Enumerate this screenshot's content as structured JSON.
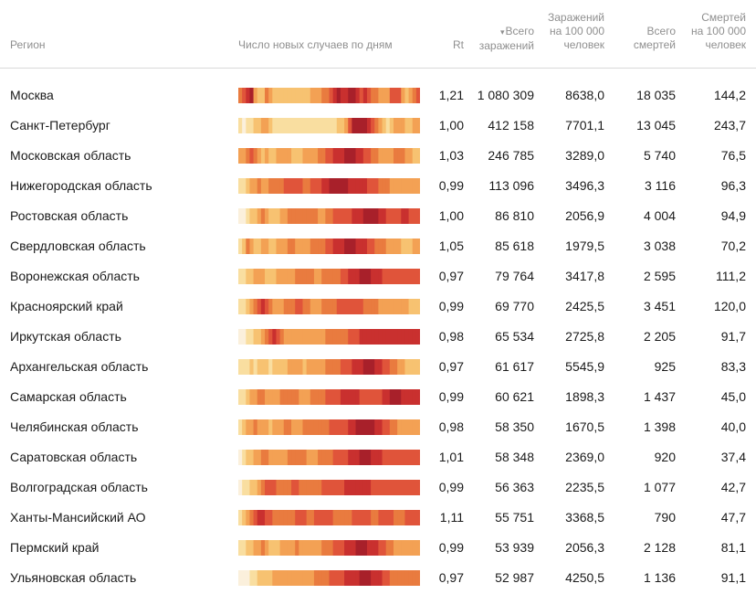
{
  "header": {
    "region": "Регион",
    "chart": "Число новых случаев по дням",
    "rt": "Rt",
    "total_infected_line1": "Всего",
    "total_infected_line2": "заражений",
    "sort_indicator": "▾",
    "per100k_infected_line1": "Заражений",
    "per100k_infected_line2": "на 100 000",
    "per100k_infected_line3": "человек",
    "total_deaths_line1": "Всего",
    "total_deaths_line2": "смертей",
    "per100k_deaths_line1": "Смертей",
    "per100k_deaths_line2": "на 100 000",
    "per100k_deaths_line3": "человек"
  },
  "colors": {
    "palette": [
      "#fbf0dc",
      "#f9dea0",
      "#f7c271",
      "#f3a154",
      "#e97b3f",
      "#e0543a",
      "#c9302f",
      "#a8202a"
    ],
    "header_text": "#8f8f8f",
    "divider": "#d9d9d9"
  },
  "rows": [
    {
      "region": "Москва",
      "rt": "1,21",
      "total": "1 080 309",
      "per100k": "8638,0",
      "deaths": "18 035",
      "deaths_per100k": "144,2",
      "daily_intensity": [
        4,
        5,
        6,
        7,
        3,
        2,
        2,
        4,
        3,
        2,
        2,
        2,
        2,
        2,
        2,
        2,
        2,
        2,
        2,
        3,
        3,
        3,
        4,
        4,
        5,
        6,
        7,
        6,
        6,
        7,
        7,
        6,
        5,
        6,
        5,
        4,
        4,
        3,
        3,
        3,
        5,
        5,
        5,
        3,
        2,
        3,
        4,
        5
      ]
    },
    {
      "region": "Санкт-Петербург",
      "rt": "1,00",
      "total": "412 158",
      "per100k": "7701,1",
      "deaths": "13 045",
      "deaths_per100k": "243,7",
      "daily_intensity": [
        1,
        0,
        1,
        1,
        2,
        2,
        3,
        3,
        2,
        1,
        1,
        1,
        1,
        1,
        1,
        1,
        1,
        1,
        1,
        1,
        1,
        1,
        1,
        1,
        1,
        1,
        2,
        2,
        3,
        5,
        7,
        7,
        7,
        7,
        6,
        5,
        4,
        3,
        2,
        1,
        2,
        3,
        3,
        3,
        2,
        2,
        3,
        3
      ]
    },
    {
      "region": "Московская область",
      "rt": "1,03",
      "total": "246 785",
      "per100k": "3289,0",
      "deaths": "5 740",
      "deaths_per100k": "76,5",
      "daily_intensity": [
        3,
        3,
        4,
        5,
        4,
        3,
        2,
        3,
        2,
        2,
        3,
        3,
        3,
        3,
        2,
        2,
        2,
        3,
        3,
        3,
        3,
        4,
        4,
        5,
        5,
        6,
        6,
        6,
        7,
        7,
        7,
        6,
        6,
        5,
        5,
        4,
        4,
        3,
        3,
        3,
        3,
        4,
        4,
        4,
        3,
        3,
        2,
        2
      ]
    },
    {
      "region": "Нижегородская область",
      "rt": "0,99",
      "total": "113 096",
      "per100k": "3496,3",
      "deaths": "3 116",
      "deaths_per100k": "96,3",
      "daily_intensity": [
        1,
        1,
        2,
        3,
        3,
        4,
        3,
        3,
        4,
        4,
        4,
        4,
        5,
        5,
        5,
        5,
        5,
        4,
        4,
        5,
        5,
        5,
        6,
        6,
        7,
        7,
        7,
        7,
        7,
        6,
        6,
        6,
        6,
        6,
        5,
        5,
        5,
        4,
        4,
        4,
        3,
        3,
        3,
        3,
        3,
        3,
        3,
        3
      ]
    },
    {
      "region": "Ростовская область",
      "rt": "1,00",
      "total": "86 810",
      "per100k": "2056,9",
      "deaths": "4 004",
      "deaths_per100k": "94,9",
      "daily_intensity": [
        0,
        0,
        1,
        2,
        2,
        3,
        4,
        3,
        2,
        2,
        2,
        3,
        3,
        4,
        4,
        4,
        4,
        4,
        4,
        4,
        4,
        3,
        3,
        4,
        4,
        5,
        5,
        5,
        5,
        5,
        6,
        6,
        6,
        7,
        7,
        7,
        7,
        6,
        6,
        5,
        5,
        5,
        5,
        6,
        6,
        5,
        5,
        5
      ]
    },
    {
      "region": "Свердловская область",
      "rt": "1,05",
      "total": "85 618",
      "per100k": "1979,5",
      "deaths": "3 038",
      "deaths_per100k": "70,2",
      "daily_intensity": [
        1,
        2,
        4,
        3,
        2,
        2,
        3,
        3,
        2,
        2,
        3,
        3,
        3,
        4,
        4,
        3,
        3,
        3,
        3,
        4,
        4,
        4,
        4,
        5,
        5,
        6,
        6,
        6,
        7,
        7,
        7,
        6,
        6,
        6,
        5,
        5,
        4,
        4,
        4,
        3,
        3,
        3,
        3,
        2,
        2,
        2,
        3,
        3
      ]
    },
    {
      "region": "Воронежская область",
      "rt": "0,97",
      "total": "79 764",
      "per100k": "3417,8",
      "deaths": "2 595",
      "deaths_per100k": "111,2",
      "daily_intensity": [
        1,
        1,
        2,
        2,
        3,
        3,
        3,
        2,
        2,
        2,
        3,
        3,
        3,
        3,
        3,
        4,
        4,
        4,
        4,
        4,
        3,
        3,
        4,
        4,
        4,
        4,
        4,
        5,
        5,
        6,
        6,
        6,
        7,
        7,
        7,
        6,
        6,
        6,
        5,
        5,
        5,
        5,
        5,
        5,
        5,
        5,
        5,
        5
      ]
    },
    {
      "region": "Красноярский край",
      "rt": "0,99",
      "total": "69 770",
      "per100k": "2425,5",
      "deaths": "3 451",
      "deaths_per100k": "120,0",
      "daily_intensity": [
        1,
        1,
        2,
        3,
        4,
        5,
        6,
        5,
        4,
        3,
        3,
        3,
        4,
        4,
        4,
        5,
        5,
        4,
        4,
        3,
        3,
        3,
        4,
        4,
        4,
        4,
        5,
        5,
        5,
        5,
        5,
        5,
        5,
        4,
        4,
        4,
        4,
        3,
        3,
        3,
        3,
        3,
        3,
        3,
        3,
        2,
        2,
        2
      ]
    },
    {
      "region": "Иркутская область",
      "rt": "0,98",
      "total": "65 534",
      "per100k": "2725,8",
      "deaths": "2 205",
      "deaths_per100k": "91,7",
      "daily_intensity": [
        0,
        0,
        1,
        1,
        2,
        2,
        3,
        4,
        5,
        6,
        5,
        4,
        3,
        3,
        3,
        3,
        3,
        3,
        3,
        3,
        3,
        3,
        3,
        4,
        4,
        4,
        4,
        4,
        4,
        5,
        5,
        5,
        6,
        6,
        6,
        6,
        6,
        6,
        6,
        6,
        6,
        6,
        6,
        6,
        6,
        6,
        6,
        6
      ]
    },
    {
      "region": "Архангельская область",
      "rt": "0,97",
      "total": "61 617",
      "per100k": "5545,9",
      "deaths": "925",
      "deaths_per100k": "83,3",
      "daily_intensity": [
        1,
        1,
        1,
        2,
        1,
        2,
        2,
        2,
        1,
        2,
        2,
        2,
        2,
        3,
        3,
        3,
        3,
        2,
        3,
        3,
        3,
        3,
        3,
        4,
        4,
        4,
        4,
        5,
        5,
        5,
        6,
        6,
        6,
        7,
        7,
        7,
        6,
        6,
        5,
        5,
        4,
        4,
        3,
        3,
        2,
        2,
        2,
        2
      ]
    },
    {
      "region": "Самарская область",
      "rt": "0,99",
      "total": "60 621",
      "per100k": "1898,3",
      "deaths": "1 437",
      "deaths_per100k": "45,0",
      "daily_intensity": [
        1,
        1,
        2,
        3,
        3,
        4,
        4,
        3,
        3,
        3,
        3,
        4,
        4,
        4,
        4,
        4,
        3,
        3,
        3,
        4,
        4,
        4,
        4,
        5,
        5,
        5,
        5,
        6,
        6,
        6,
        6,
        6,
        5,
        5,
        5,
        5,
        5,
        5,
        6,
        6,
        7,
        7,
        7,
        6,
        6,
        6,
        6,
        6
      ]
    },
    {
      "region": "Челябинская область",
      "rt": "0,98",
      "total": "58 350",
      "per100k": "1670,5",
      "deaths": "1 398",
      "deaths_per100k": "40,0",
      "daily_intensity": [
        1,
        2,
        3,
        3,
        4,
        3,
        3,
        3,
        2,
        3,
        3,
        3,
        4,
        4,
        3,
        3,
        3,
        4,
        4,
        4,
        4,
        4,
        4,
        4,
        5,
        5,
        5,
        5,
        5,
        6,
        6,
        7,
        7,
        7,
        7,
        7,
        6,
        6,
        5,
        5,
        4,
        4,
        3,
        3,
        3,
        3,
        3,
        3
      ]
    },
    {
      "region": "Саратовская область",
      "rt": "1,01",
      "total": "58 348",
      "per100k": "2369,0",
      "deaths": "920",
      "deaths_per100k": "37,4",
      "daily_intensity": [
        0,
        1,
        2,
        2,
        3,
        3,
        4,
        4,
        3,
        3,
        3,
        3,
        3,
        4,
        4,
        4,
        4,
        4,
        3,
        3,
        3,
        4,
        4,
        4,
        4,
        5,
        5,
        5,
        5,
        6,
        6,
        6,
        7,
        7,
        7,
        6,
        6,
        6,
        5,
        5,
        5,
        5,
        5,
        5,
        5,
        5,
        5,
        5
      ]
    },
    {
      "region": "Волгоградская область",
      "rt": "0,99",
      "total": "56 363",
      "per100k": "2235,5",
      "deaths": "1 077",
      "deaths_per100k": "42,7",
      "daily_intensity": [
        0,
        1,
        1,
        2,
        2,
        3,
        4,
        5,
        5,
        5,
        4,
        4,
        4,
        4,
        5,
        5,
        4,
        4,
        4,
        4,
        4,
        4,
        5,
        5,
        5,
        5,
        5,
        5,
        6,
        6,
        6,
        6,
        6,
        6,
        6,
        5,
        5,
        5,
        5,
        5,
        5,
        5,
        5,
        5,
        5,
        5,
        5,
        5
      ]
    },
    {
      "region": "Ханты-Мансийский АО",
      "rt": "1,11",
      "total": "55 751",
      "per100k": "3368,5",
      "deaths": "790",
      "deaths_per100k": "47,7",
      "daily_intensity": [
        1,
        2,
        3,
        4,
        5,
        6,
        6,
        5,
        5,
        4,
        4,
        4,
        4,
        4,
        4,
        5,
        5,
        5,
        4,
        4,
        5,
        5,
        5,
        5,
        5,
        4,
        4,
        4,
        4,
        4,
        5,
        5,
        5,
        5,
        5,
        4,
        4,
        5,
        5,
        5,
        5,
        4,
        4,
        4,
        5,
        5,
        5,
        5
      ]
    },
    {
      "region": "Пермский край",
      "rt": "0,99",
      "total": "53 939",
      "per100k": "2056,3",
      "deaths": "2 128",
      "deaths_per100k": "81,1",
      "daily_intensity": [
        1,
        1,
        2,
        2,
        3,
        3,
        4,
        3,
        2,
        2,
        2,
        3,
        3,
        3,
        3,
        4,
        3,
        3,
        3,
        3,
        3,
        3,
        4,
        4,
        4,
        5,
        5,
        5,
        6,
        6,
        6,
        7,
        7,
        7,
        6,
        6,
        6,
        5,
        5,
        4,
        4,
        3,
        3,
        3,
        3,
        3,
        3,
        3
      ]
    },
    {
      "region": "Ульяновская область",
      "rt": "0,97",
      "total": "52 987",
      "per100k": "4250,5",
      "deaths": "1 136",
      "deaths_per100k": "91,1",
      "daily_intensity": [
        0,
        0,
        0,
        1,
        1,
        2,
        2,
        2,
        2,
        3,
        3,
        3,
        3,
        3,
        3,
        3,
        3,
        3,
        3,
        3,
        4,
        4,
        4,
        4,
        5,
        5,
        5,
        5,
        6,
        6,
        6,
        6,
        7,
        7,
        7,
        6,
        6,
        6,
        5,
        5,
        4,
        4,
        4,
        4,
        4,
        4,
        4,
        4
      ]
    }
  ]
}
